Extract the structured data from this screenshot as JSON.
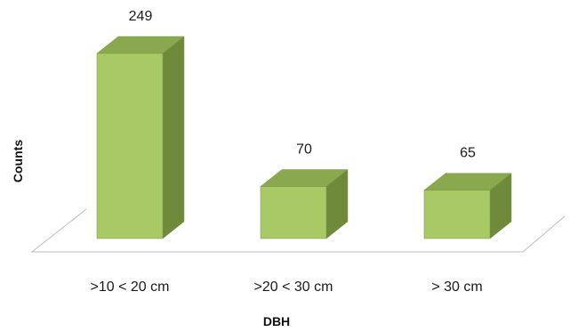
{
  "chart_data": {
    "type": "bar",
    "style": "3d-column",
    "categories": [
      ">10 < 20 cm",
      ">20 < 30 cm",
      "> 30 cm"
    ],
    "values": [
      249,
      70,
      65
    ],
    "data_labels": [
      "249",
      "70",
      "65"
    ],
    "xlabel": "DBH",
    "ylabel": "Counts",
    "ylim": [
      0,
      249
    ],
    "grid": false,
    "legend": "none",
    "colors": {
      "front": "#a9c866",
      "top": "#8aa84e",
      "side": "#6f8a3b",
      "edge": "#7a9640",
      "floor": "#bdbdbd"
    }
  }
}
